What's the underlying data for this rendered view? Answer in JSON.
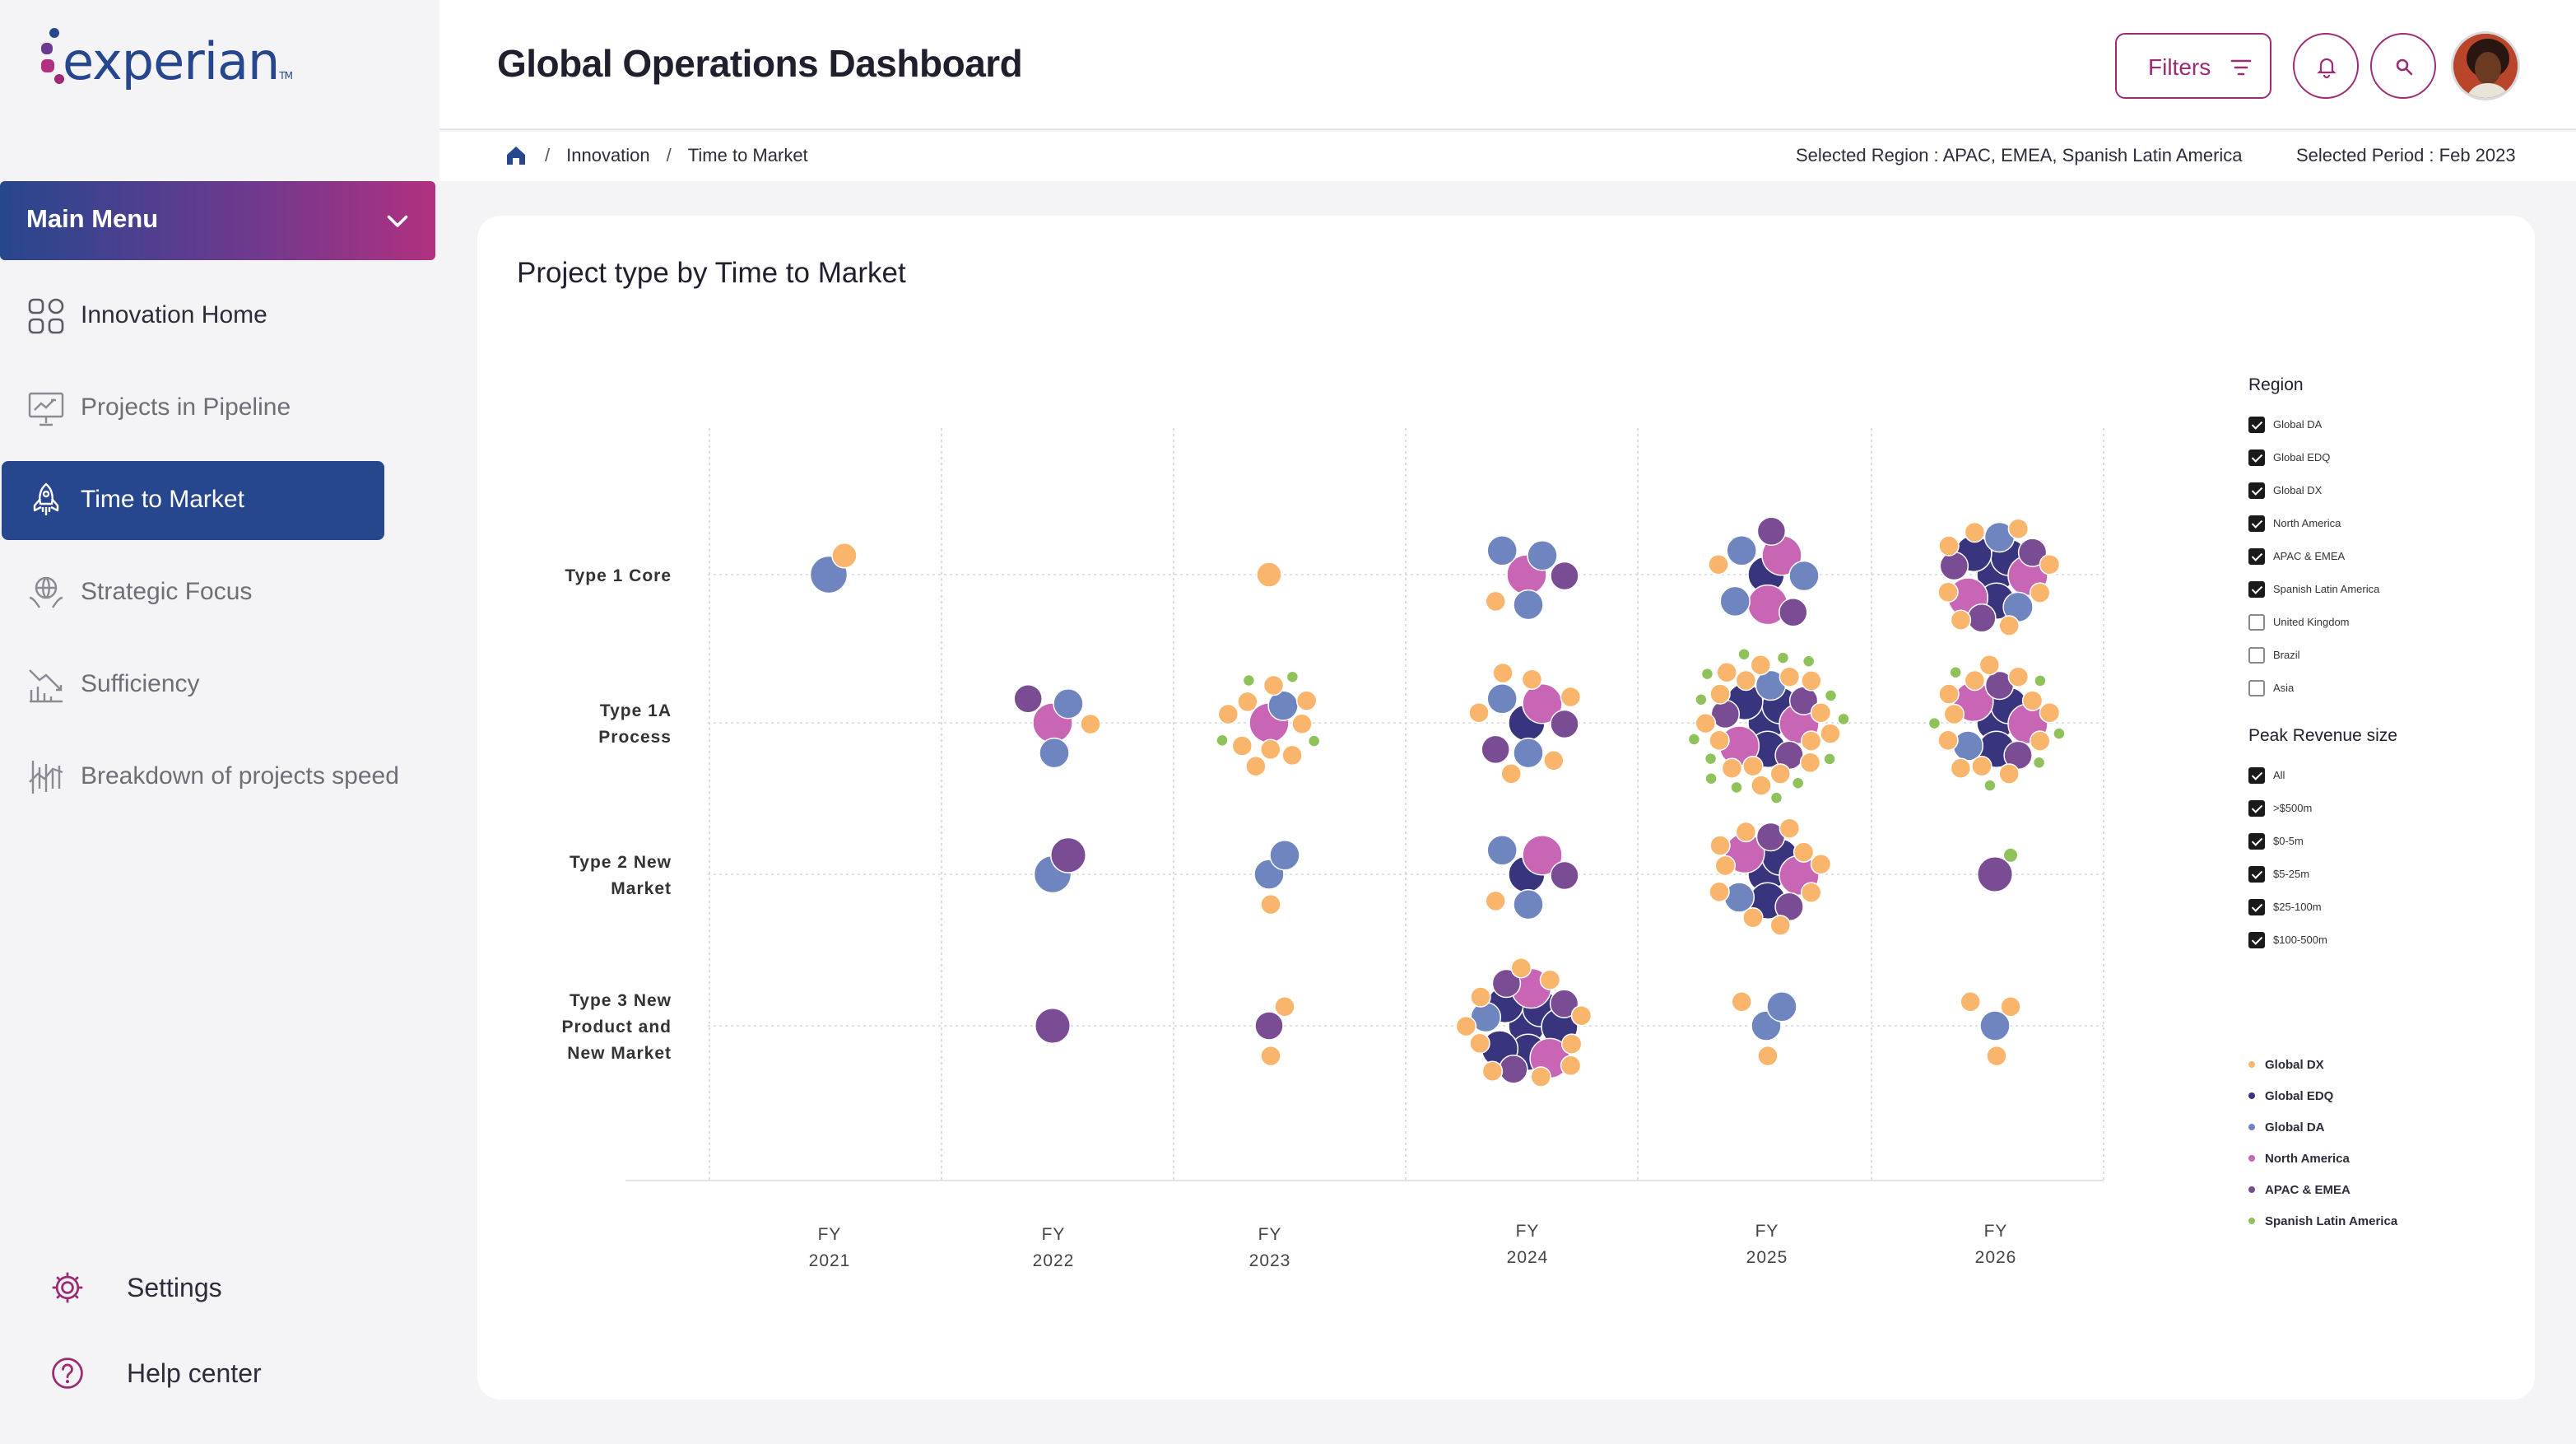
{
  "brand": {
    "name": "experian",
    "tm": "TM"
  },
  "colors": {
    "navy": "#26478d",
    "magenta": "#9c2a74",
    "global_dx": "#f9b56b",
    "global_edq": "#38347e",
    "global_da": "#6e85bf",
    "north_america": "#c965b5",
    "apac_emea": "#7a4c93",
    "spanish_latin_america": "#8fc25a"
  },
  "sidebar": {
    "main_menu": "Main Menu",
    "items": [
      {
        "label": "Innovation Home",
        "icon": "grid-icon"
      },
      {
        "label": "Projects in Pipeline",
        "icon": "presentation-board-icon"
      },
      {
        "label": "Time to Market",
        "icon": "rocket-icon"
      },
      {
        "label": "Strategic Focus",
        "icon": "globe-hands-icon"
      },
      {
        "label": "Sufficiency",
        "icon": "chart-decline-icon"
      },
      {
        "label": "Breakdown of projects speed",
        "icon": "stock-chart-icon"
      }
    ],
    "settings": "Settings",
    "help": "Help center"
  },
  "header": {
    "title": "Global Operations Dashboard",
    "filters_label": "Filters"
  },
  "breadcrumb": {
    "items": [
      "Innovation",
      "Time to Market"
    ],
    "sep": "/",
    "selected_region": "Selected Region : APAC, EMEA, Spanish Latin America",
    "selected_period": "Selected Period : Feb 2023"
  },
  "card": {
    "title": "Project type by Time to Market"
  },
  "legend": {
    "region_title": "Region",
    "regions": [
      {
        "label": "Global DA",
        "checked": true
      },
      {
        "label": "Global EDQ",
        "checked": true
      },
      {
        "label": "Global DX",
        "checked": true
      },
      {
        "label": "North America",
        "checked": true
      },
      {
        "label": "APAC & EMEA",
        "checked": true
      },
      {
        "label": "Spanish Latin America",
        "checked": true
      },
      {
        "label": "United Kingdom",
        "checked": false
      },
      {
        "label": "Brazil",
        "checked": false
      },
      {
        "label": "Asia",
        "checked": false
      }
    ],
    "revenue_title": "Peak Revenue size",
    "revenue": [
      {
        "label": "All",
        "checked": true
      },
      {
        "label": ">$500m",
        "checked": true
      },
      {
        "label": "$0-5m",
        "checked": true
      },
      {
        "label": "$5-25m",
        "checked": true
      },
      {
        "label": "$25-100m",
        "checked": true
      },
      {
        "label": "$100-500m",
        "checked": true
      }
    ],
    "series": [
      {
        "label": "Global DX",
        "color": "#f9b56b"
      },
      {
        "label": "Global EDQ",
        "color": "#38347e"
      },
      {
        "label": "Global DA",
        "color": "#6e85bf"
      },
      {
        "label": "North America",
        "color": "#c965b5"
      },
      {
        "label": "APAC & EMEA",
        "color": "#7a4c93"
      },
      {
        "label": "Spanish Latin America",
        "color": "#8fc25a"
      }
    ]
  },
  "chart_data": {
    "type": "scatter",
    "title": "Project type by Time to Market",
    "x_categories": [
      [
        "FY",
        "2021"
      ],
      [
        "FY",
        "2022"
      ],
      [
        "FY",
        "2023"
      ],
      [
        "FY",
        "2024"
      ],
      [
        "FY",
        "2025"
      ],
      [
        "FY",
        "2026"
      ]
    ],
    "y_categories": [
      [
        "Type 1 Core"
      ],
      [
        "Type 1A",
        "Process"
      ],
      [
        "Type 2 New",
        "Market"
      ],
      [
        "Type 3 New",
        "Product and",
        "New Market"
      ]
    ],
    "series_colors": {
      "DX": "#f9b56b",
      "EDQ": "#38347e",
      "DA": "#6e85bf",
      "NA": "#c965b5",
      "APAC": "#7a4c93",
      "SLA": "#8fc25a"
    },
    "clusters": [
      {
        "x": 0,
        "y": 0,
        "counts": {
          "DA": 1,
          "DX": 1
        }
      },
      {
        "x": 2,
        "y": 0,
        "counts": {
          "DX": 1
        }
      },
      {
        "x": 3,
        "y": 0,
        "counts": {
          "NA": 1,
          "DX": 1,
          "APAC": 1,
          "DA": 3
        }
      },
      {
        "x": 4,
        "y": 0,
        "counts": {
          "EDQ": 1,
          "NA": 2,
          "DX": 1,
          "DA": 3,
          "APAC": 2
        }
      },
      {
        "x": 5,
        "y": 0,
        "counts": {
          "NA": 2,
          "EDQ": 4,
          "DA": 2,
          "APAC": 3,
          "DX": 8
        }
      },
      {
        "x": 1,
        "y": 1,
        "counts": {
          "APAC": 1,
          "NA": 1,
          "DX": 1,
          "DA": 2
        }
      },
      {
        "x": 2,
        "y": 1,
        "counts": {
          "DA": 1,
          "NA": 1,
          "DX": 9,
          "SLA": 4
        }
      },
      {
        "x": 3,
        "y": 1,
        "counts": {
          "EDQ": 1,
          "APAC": 2,
          "DA": 2,
          "NA": 1,
          "DX": 6
        }
      },
      {
        "x": 4,
        "y": 1,
        "counts": {
          "DA": 1,
          "NA": 2,
          "APAC": 3,
          "EDQ": 4,
          "DX": 16,
          "SLA": 14
        }
      },
      {
        "x": 5,
        "y": 1,
        "counts": {
          "DA": 1,
          "NA": 2,
          "EDQ": 3,
          "APAC": 2,
          "DX": 12,
          "SLA": 6
        }
      },
      {
        "x": 1,
        "y": 2,
        "counts": {
          "APAC": 1,
          "DA": 1
        }
      },
      {
        "x": 2,
        "y": 2,
        "counts": {
          "DA": 2,
          "DX": 1
        }
      },
      {
        "x": 3,
        "y": 2,
        "counts": {
          "APAC": 1,
          "NA": 1,
          "DX": 1,
          "DA": 2,
          "EDQ": 1
        }
      },
      {
        "x": 4,
        "y": 2,
        "counts": {
          "DA": 1,
          "NA": 2,
          "APAC": 2,
          "EDQ": 3,
          "DX": 10
        }
      },
      {
        "x": 5,
        "y": 2,
        "counts": {
          "APAC": 1,
          "SLA": 1
        }
      },
      {
        "x": 1,
        "y": 3,
        "counts": {
          "APAC": 1
        }
      },
      {
        "x": 2,
        "y": 3,
        "counts": {
          "DX": 2,
          "APAC": 1
        }
      },
      {
        "x": 3,
        "y": 3,
        "counts": {
          "NA": 2,
          "EDQ": 6,
          "APAC": 3,
          "DA": 1,
          "DX": 10
        }
      },
      {
        "x": 4,
        "y": 3,
        "counts": {
          "DX": 2,
          "DA": 2
        }
      },
      {
        "x": 5,
        "y": 3,
        "counts": {
          "DX": 3,
          "DA": 1
        }
      }
    ]
  }
}
